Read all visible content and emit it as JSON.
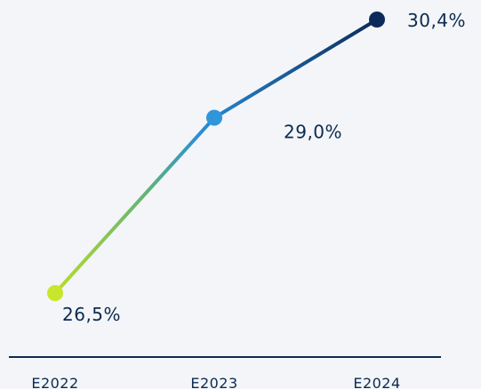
{
  "chart_data": {
    "type": "line",
    "categories": [
      "E2022",
      "E2023",
      "E2024"
    ],
    "series": [
      {
        "values": [
          26.5,
          29.0,
          30.4
        ],
        "labels": [
          "26,5%",
          "29,0%",
          "30,4%"
        ],
        "point_colors": [
          "#c8e62c",
          "#2f96dc",
          "#0b2a5a"
        ],
        "line_gradient": [
          "#b9dc2a",
          "#5fb27a",
          "#2a8fd6",
          "#0b2a5a"
        ]
      }
    ],
    "ylim": [
      26.0,
      31.0
    ],
    "grid": false,
    "baseline_color": "#0c2a4f"
  }
}
